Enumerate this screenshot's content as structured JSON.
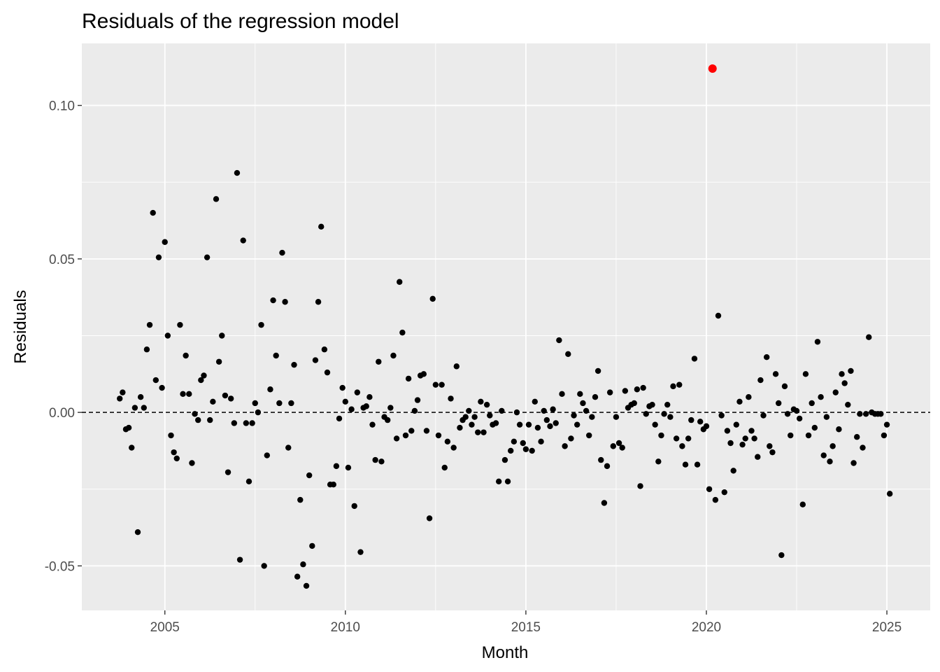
{
  "chart_data": {
    "type": "scatter",
    "title": "Residuals of the regression model",
    "xlabel": "Month",
    "ylabel": "Residuals",
    "x_unit": "year",
    "xlim": [
      2002.7,
      2026.2
    ],
    "ylim": [
      -0.0645,
      0.1202
    ],
    "x_ticks": [
      2005,
      2010,
      2015,
      2020,
      2025
    ],
    "x_tick_labels": [
      "2005",
      "2010",
      "2015",
      "2020",
      "2025"
    ],
    "y_ticks": [
      -0.05,
      0.0,
      0.05,
      0.1
    ],
    "y_tick_labels": [
      "-0.05",
      "0.00",
      "0.05",
      "0.10"
    ],
    "reference_line": {
      "y": 0,
      "style": "dashed",
      "color": "#000000"
    },
    "panel_background": "#ebebeb",
    "grid": true,
    "grid_color": "#ffffff",
    "point_color": "#000000",
    "highlight_color": "#ff0000",
    "points": [
      [
        2003.75,
        0.0045
      ],
      [
        2003.83,
        0.0065
      ],
      [
        2003.92,
        -0.0055
      ],
      [
        2004.0,
        -0.005
      ],
      [
        2004.08,
        -0.0115
      ],
      [
        2004.17,
        0.0015
      ],
      [
        2004.25,
        -0.039
      ],
      [
        2004.33,
        0.005
      ],
      [
        2004.42,
        0.0015
      ],
      [
        2004.5,
        0.0205
      ],
      [
        2004.58,
        0.0285
      ],
      [
        2004.67,
        0.065
      ],
      [
        2004.75,
        0.0105
      ],
      [
        2004.83,
        0.0505
      ],
      [
        2004.92,
        0.008
      ],
      [
        2005.0,
        0.0555
      ],
      [
        2005.08,
        0.025
      ],
      [
        2005.17,
        -0.0075
      ],
      [
        2005.25,
        -0.013
      ],
      [
        2005.33,
        -0.015
      ],
      [
        2005.42,
        0.0285
      ],
      [
        2005.5,
        0.006
      ],
      [
        2005.58,
        0.0185
      ],
      [
        2005.67,
        0.006
      ],
      [
        2005.75,
        -0.0165
      ],
      [
        2005.83,
        -0.0005
      ],
      [
        2005.92,
        -0.0025
      ],
      [
        2006.0,
        0.0105
      ],
      [
        2006.08,
        0.012
      ],
      [
        2006.17,
        0.0505
      ],
      [
        2006.25,
        -0.0025
      ],
      [
        2006.33,
        0.0035
      ],
      [
        2006.42,
        0.0695
      ],
      [
        2006.5,
        0.0165
      ],
      [
        2006.58,
        0.025
      ],
      [
        2006.67,
        0.0055
      ],
      [
        2006.75,
        -0.0195
      ],
      [
        2006.83,
        0.0045
      ],
      [
        2006.92,
        -0.0035
      ],
      [
        2007.0,
        0.078
      ],
      [
        2007.08,
        -0.048
      ],
      [
        2007.17,
        0.056
      ],
      [
        2007.25,
        -0.0035
      ],
      [
        2007.33,
        -0.0225
      ],
      [
        2007.42,
        -0.0035
      ],
      [
        2007.5,
        0.003
      ],
      [
        2007.58,
        0.0
      ],
      [
        2007.67,
        0.0285
      ],
      [
        2007.75,
        -0.05
      ],
      [
        2007.83,
        -0.014
      ],
      [
        2007.92,
        0.0075
      ],
      [
        2008.0,
        0.0365
      ],
      [
        2008.08,
        0.0185
      ],
      [
        2008.17,
        0.003
      ],
      [
        2008.25,
        0.052
      ],
      [
        2008.33,
        0.036
      ],
      [
        2008.42,
        -0.0115
      ],
      [
        2008.5,
        0.003
      ],
      [
        2008.58,
        0.0155
      ],
      [
        2008.67,
        -0.0535
      ],
      [
        2008.75,
        -0.0285
      ],
      [
        2008.83,
        -0.0495
      ],
      [
        2008.92,
        -0.0565
      ],
      [
        2009.0,
        -0.0205
      ],
      [
        2009.08,
        -0.0435
      ],
      [
        2009.17,
        0.017
      ],
      [
        2009.25,
        0.036
      ],
      [
        2009.33,
        0.0605
      ],
      [
        2009.42,
        0.0205
      ],
      [
        2009.5,
        0.013
      ],
      [
        2009.58,
        -0.0235
      ],
      [
        2009.67,
        -0.0235
      ],
      [
        2009.75,
        -0.0175
      ],
      [
        2009.83,
        -0.002
      ],
      [
        2009.92,
        0.008
      ],
      [
        2010.0,
        0.0035
      ],
      [
        2010.08,
        -0.018
      ],
      [
        2010.17,
        0.001
      ],
      [
        2010.25,
        -0.0305
      ],
      [
        2010.33,
        0.0065
      ],
      [
        2010.42,
        -0.0455
      ],
      [
        2010.5,
        0.0015
      ],
      [
        2010.58,
        0.002
      ],
      [
        2010.67,
        0.005
      ],
      [
        2010.75,
        -0.004
      ],
      [
        2010.83,
        -0.0155
      ],
      [
        2010.92,
        0.0165
      ],
      [
        2011.0,
        -0.016
      ],
      [
        2011.08,
        -0.0015
      ],
      [
        2011.17,
        -0.0025
      ],
      [
        2011.25,
        0.0015
      ],
      [
        2011.33,
        0.0185
      ],
      [
        2011.42,
        -0.0085
      ],
      [
        2011.5,
        0.0425
      ],
      [
        2011.58,
        0.026
      ],
      [
        2011.67,
        -0.0075
      ],
      [
        2011.75,
        0.011
      ],
      [
        2011.83,
        -0.006
      ],
      [
        2011.92,
        0.0005
      ],
      [
        2012.0,
        0.004
      ],
      [
        2012.08,
        0.012
      ],
      [
        2012.17,
        0.0125
      ],
      [
        2012.25,
        -0.006
      ],
      [
        2012.33,
        -0.0345
      ],
      [
        2012.42,
        0.037
      ],
      [
        2012.5,
        0.009
      ],
      [
        2012.58,
        -0.0075
      ],
      [
        2012.67,
        0.009
      ],
      [
        2012.75,
        -0.018
      ],
      [
        2012.83,
        -0.0095
      ],
      [
        2012.92,
        0.0045
      ],
      [
        2013.0,
        -0.0115
      ],
      [
        2013.08,
        0.015
      ],
      [
        2013.17,
        -0.005
      ],
      [
        2013.25,
        -0.0025
      ],
      [
        2013.33,
        -0.0015
      ],
      [
        2013.42,
        0.0005
      ],
      [
        2013.5,
        -0.004
      ],
      [
        2013.58,
        -0.0015
      ],
      [
        2013.67,
        -0.0065
      ],
      [
        2013.75,
        0.0035
      ],
      [
        2013.83,
        -0.0065
      ],
      [
        2013.92,
        0.0025
      ],
      [
        2014.0,
        -0.001
      ],
      [
        2014.08,
        -0.004
      ],
      [
        2014.17,
        -0.0035
      ],
      [
        2014.25,
        -0.0225
      ],
      [
        2014.33,
        0.0005
      ],
      [
        2014.42,
        -0.0155
      ],
      [
        2014.5,
        -0.0225
      ],
      [
        2014.58,
        -0.0125
      ],
      [
        2014.67,
        -0.0095
      ],
      [
        2014.75,
        0.0
      ],
      [
        2014.83,
        -0.004
      ],
      [
        2014.92,
        -0.01
      ],
      [
        2015.0,
        -0.012
      ],
      [
        2015.08,
        -0.004
      ],
      [
        2015.17,
        -0.0125
      ],
      [
        2015.25,
        0.0035
      ],
      [
        2015.33,
        -0.005
      ],
      [
        2015.42,
        -0.0095
      ],
      [
        2015.5,
        0.0005
      ],
      [
        2015.58,
        -0.0025
      ],
      [
        2015.67,
        -0.0045
      ],
      [
        2015.75,
        0.001
      ],
      [
        2015.83,
        -0.0035
      ],
      [
        2015.92,
        0.0235
      ],
      [
        2016.0,
        0.006
      ],
      [
        2016.08,
        -0.011
      ],
      [
        2016.17,
        0.019
      ],
      [
        2016.25,
        -0.0085
      ],
      [
        2016.33,
        -0.001
      ],
      [
        2016.42,
        -0.004
      ],
      [
        2016.5,
        0.006
      ],
      [
        2016.58,
        0.003
      ],
      [
        2016.67,
        0.0005
      ],
      [
        2016.75,
        -0.0075
      ],
      [
        2016.83,
        -0.0015
      ],
      [
        2016.92,
        0.005
      ],
      [
        2017.0,
        0.0135
      ],
      [
        2017.08,
        -0.0155
      ],
      [
        2017.17,
        -0.0295
      ],
      [
        2017.25,
        -0.0175
      ],
      [
        2017.33,
        0.0065
      ],
      [
        2017.42,
        -0.011
      ],
      [
        2017.5,
        -0.0015
      ],
      [
        2017.58,
        -0.01
      ],
      [
        2017.67,
        -0.0115
      ],
      [
        2017.75,
        0.007
      ],
      [
        2017.83,
        0.0015
      ],
      [
        2017.92,
        0.0025
      ],
      [
        2018.0,
        0.003
      ],
      [
        2018.08,
        0.0075
      ],
      [
        2018.17,
        -0.024
      ],
      [
        2018.25,
        0.008
      ],
      [
        2018.33,
        -0.0005
      ],
      [
        2018.42,
        0.002
      ],
      [
        2018.5,
        0.0025
      ],
      [
        2018.58,
        -0.004
      ],
      [
        2018.67,
        -0.016
      ],
      [
        2018.75,
        -0.0075
      ],
      [
        2018.83,
        -0.0005
      ],
      [
        2018.92,
        0.0025
      ],
      [
        2019.0,
        -0.0015
      ],
      [
        2019.08,
        0.0085
      ],
      [
        2019.17,
        -0.0085
      ],
      [
        2019.25,
        0.009
      ],
      [
        2019.33,
        -0.011
      ],
      [
        2019.42,
        -0.017
      ],
      [
        2019.5,
        -0.0085
      ],
      [
        2019.58,
        -0.0025
      ],
      [
        2019.67,
        0.0175
      ],
      [
        2019.75,
        -0.017
      ],
      [
        2019.83,
        -0.003
      ],
      [
        2019.92,
        -0.0055
      ],
      [
        2020.0,
        -0.0045
      ],
      [
        2020.08,
        -0.025
      ],
      [
        2020.17,
        0.112
      ],
      [
        2020.25,
        -0.0285
      ],
      [
        2020.33,
        0.0315
      ],
      [
        2020.42,
        -0.001
      ],
      [
        2020.5,
        -0.026
      ],
      [
        2020.58,
        -0.006
      ],
      [
        2020.67,
        -0.01
      ],
      [
        2020.75,
        -0.019
      ],
      [
        2020.83,
        -0.004
      ],
      [
        2020.92,
        0.0035
      ],
      [
        2021.0,
        -0.0105
      ],
      [
        2021.08,
        -0.0085
      ],
      [
        2021.17,
        0.005
      ],
      [
        2021.25,
        -0.006
      ],
      [
        2021.33,
        -0.0085
      ],
      [
        2021.42,
        -0.0145
      ],
      [
        2021.5,
        0.0105
      ],
      [
        2021.58,
        -0.001
      ],
      [
        2021.67,
        0.018
      ],
      [
        2021.75,
        -0.011
      ],
      [
        2021.83,
        -0.013
      ],
      [
        2021.92,
        0.0125
      ],
      [
        2022.0,
        0.003
      ],
      [
        2022.08,
        -0.0465
      ],
      [
        2022.17,
        0.0085
      ],
      [
        2022.25,
        -0.0005
      ],
      [
        2022.33,
        -0.0075
      ],
      [
        2022.42,
        0.001
      ],
      [
        2022.5,
        0.0005
      ],
      [
        2022.58,
        -0.002
      ],
      [
        2022.67,
        -0.03
      ],
      [
        2022.75,
        0.0125
      ],
      [
        2022.83,
        -0.0075
      ],
      [
        2022.92,
        0.003
      ],
      [
        2023.0,
        -0.005
      ],
      [
        2023.08,
        0.023
      ],
      [
        2023.17,
        0.005
      ],
      [
        2023.25,
        -0.014
      ],
      [
        2023.33,
        -0.0015
      ],
      [
        2023.42,
        -0.016
      ],
      [
        2023.5,
        -0.011
      ],
      [
        2023.58,
        0.0065
      ],
      [
        2023.67,
        -0.0055
      ],
      [
        2023.75,
        0.0125
      ],
      [
        2023.83,
        0.0095
      ],
      [
        2023.92,
        0.0025
      ],
      [
        2024.0,
        0.0135
      ],
      [
        2024.08,
        -0.0165
      ],
      [
        2024.17,
        -0.008
      ],
      [
        2024.25,
        -0.0005
      ],
      [
        2024.33,
        -0.0115
      ],
      [
        2024.42,
        -0.0005
      ],
      [
        2024.5,
        0.0245
      ],
      [
        2024.58,
        0.0
      ],
      [
        2024.67,
        -0.0005
      ],
      [
        2024.75,
        -0.0005
      ],
      [
        2024.83,
        -0.0005
      ],
      [
        2024.92,
        -0.0075
      ],
      [
        2025.0,
        -0.004
      ],
      [
        2025.08,
        -0.0265
      ]
    ],
    "highlight_points": [
      [
        2020.17,
        0.112
      ]
    ]
  }
}
